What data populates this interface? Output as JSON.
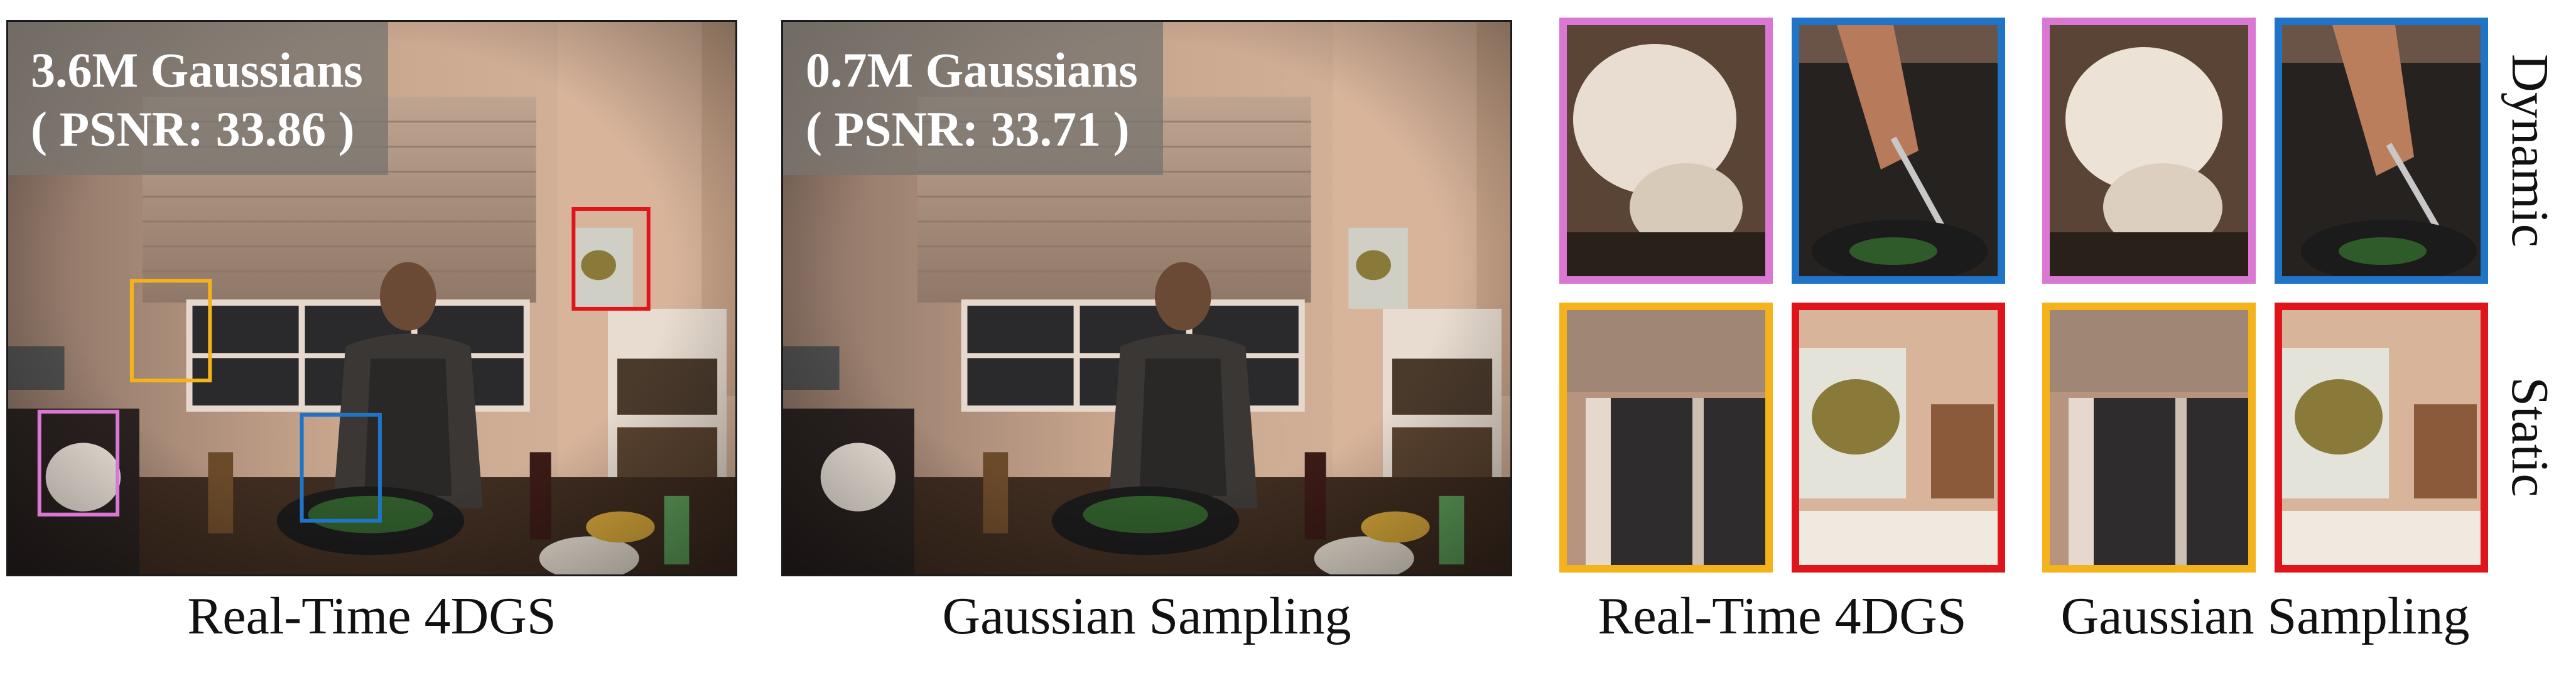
{
  "panels": [
    {
      "overlay_line1": "3.6M Gaussians",
      "overlay_line2": "( PSNR: 33.86 )",
      "caption": "Real-Time 4DGS"
    },
    {
      "overlay_line1": "0.7M Gaussians",
      "overlay_line2": "( PSNR: 33.71 )",
      "caption": "Gaussian Sampling"
    }
  ],
  "crop_groups": [
    {
      "caption": "Real-Time 4DGS"
    },
    {
      "caption": "Gaussian Sampling"
    }
  ],
  "row_labels": {
    "top": "Dynamic",
    "bottom": "Static"
  },
  "colors": {
    "magenta_box": "#d977d3",
    "blue_box": "#1f74c8",
    "yellow_box": "#f4b21b",
    "red_box": "#e0141b"
  }
}
